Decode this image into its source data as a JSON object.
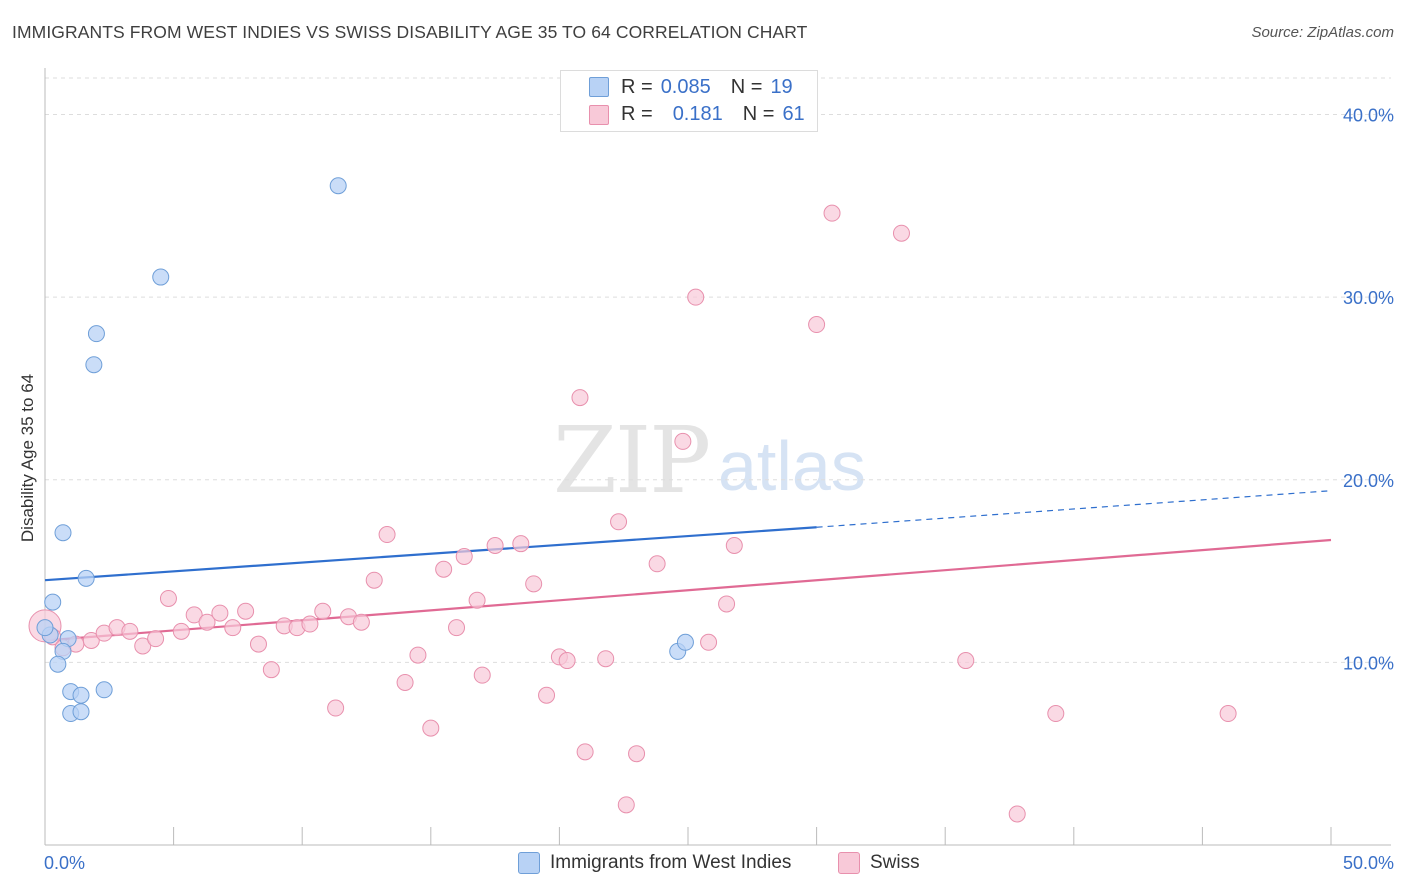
{
  "title": "IMMIGRANTS FROM WEST INDIES VS SWISS DISABILITY AGE 35 TO 64 CORRELATION CHART",
  "source": "Source: ZipAtlas.com",
  "watermark": {
    "zip": "ZIP",
    "atlas": "atlas"
  },
  "legend_top": [
    {
      "r_label": "R =",
      "r_value": "0.085",
      "n_label": "N =",
      "n_value": "19"
    },
    {
      "r_label": "R =",
      "r_value": "0.181",
      "n_label": "N =",
      "n_value": "61"
    }
  ],
  "legend_bottom": [
    "Immigrants from West Indies",
    "Swiss"
  ],
  "colors": {
    "series1_fill": "#b8d2f5",
    "series1_stroke": "#6f9fd8",
    "series1_line": "#2f6fce",
    "series2_fill": "#f8c9d8",
    "series2_stroke": "#e890ad",
    "series2_line": "#e06a94",
    "axis_text": "#3a70c8",
    "grid": "#dddddd"
  },
  "chart_data": {
    "type": "scatter",
    "title": "IMMIGRANTS FROM WEST INDIES VS SWISS DISABILITY AGE 35 TO 64 CORRELATION CHART",
    "xlabel": "",
    "ylabel": "Disability Age 35 to 64",
    "xlim": [
      0,
      50
    ],
    "ylim": [
      0,
      42
    ],
    "x_tick_labels": [
      "0.0%",
      "50.0%"
    ],
    "y_ticks": [
      10,
      20,
      30,
      40
    ],
    "y_tick_labels": [
      "10.0%",
      "20.0%",
      "30.0%",
      "40.0%"
    ],
    "grid": true,
    "legend_placement": "top-center",
    "series": [
      {
        "name": "Immigrants from West Indies",
        "r": 0.085,
        "n": 19,
        "points": [
          [
            11.4,
            36.1
          ],
          [
            4.5,
            31.1
          ],
          [
            2.0,
            28.0
          ],
          [
            1.9,
            26.3
          ],
          [
            0.7,
            17.1
          ],
          [
            1.6,
            14.6
          ],
          [
            0.3,
            13.3
          ],
          [
            0.2,
            11.5
          ],
          [
            0.9,
            11.3
          ],
          [
            0.7,
            10.6
          ],
          [
            0.5,
            9.9
          ],
          [
            1.0,
            8.4
          ],
          [
            1.4,
            8.2
          ],
          [
            2.3,
            8.5
          ],
          [
            1.0,
            7.2
          ],
          [
            1.4,
            7.3
          ],
          [
            24.6,
            10.6
          ],
          [
            24.9,
            11.1
          ],
          [
            0.0,
            11.9
          ]
        ],
        "trend": {
          "x": [
            0,
            30,
            50
          ],
          "y": [
            14.5,
            17.4,
            19.4
          ],
          "solid_until_x": 30
        }
      },
      {
        "name": "Swiss",
        "r": 0.181,
        "n": 61,
        "points": [
          [
            0.0,
            12.0
          ],
          [
            0.3,
            11.4
          ],
          [
            0.7,
            10.8
          ],
          [
            1.2,
            11.0
          ],
          [
            1.8,
            11.2
          ],
          [
            2.3,
            11.6
          ],
          [
            2.8,
            11.9
          ],
          [
            3.3,
            11.7
          ],
          [
            3.8,
            10.9
          ],
          [
            4.3,
            11.3
          ],
          [
            4.8,
            13.5
          ],
          [
            5.3,
            11.7
          ],
          [
            5.8,
            12.6
          ],
          [
            6.3,
            12.2
          ],
          [
            6.8,
            12.7
          ],
          [
            7.3,
            11.9
          ],
          [
            7.8,
            12.8
          ],
          [
            8.3,
            11.0
          ],
          [
            8.8,
            9.6
          ],
          [
            9.3,
            12.0
          ],
          [
            9.8,
            11.9
          ],
          [
            10.3,
            12.1
          ],
          [
            10.8,
            12.8
          ],
          [
            11.3,
            7.5
          ],
          [
            11.8,
            12.5
          ],
          [
            12.3,
            12.2
          ],
          [
            12.8,
            14.5
          ],
          [
            13.3,
            17.0
          ],
          [
            14.0,
            8.9
          ],
          [
            14.5,
            10.4
          ],
          [
            15.0,
            6.4
          ],
          [
            15.5,
            15.1
          ],
          [
            16.0,
            11.9
          ],
          [
            16.3,
            15.8
          ],
          [
            16.8,
            13.4
          ],
          [
            17.0,
            9.3
          ],
          [
            17.5,
            16.4
          ],
          [
            18.5,
            16.5
          ],
          [
            19.0,
            14.3
          ],
          [
            19.5,
            8.2
          ],
          [
            20.0,
            10.3
          ],
          [
            20.3,
            10.1
          ],
          [
            20.8,
            24.5
          ],
          [
            21.0,
            5.1
          ],
          [
            21.8,
            10.2
          ],
          [
            22.3,
            17.7
          ],
          [
            22.6,
            2.2
          ],
          [
            23.0,
            5.0
          ],
          [
            23.8,
            15.4
          ],
          [
            24.8,
            22.1
          ],
          [
            25.3,
            30.0
          ],
          [
            25.8,
            11.1
          ],
          [
            26.5,
            13.2
          ],
          [
            26.8,
            16.4
          ],
          [
            30.0,
            28.5
          ],
          [
            30.6,
            34.6
          ],
          [
            33.3,
            33.5
          ],
          [
            35.8,
            10.1
          ],
          [
            37.8,
            1.7
          ],
          [
            39.3,
            7.2
          ],
          [
            46.0,
            7.2
          ]
        ],
        "trend": {
          "x": [
            0,
            50
          ],
          "y": [
            11.2,
            16.7
          ]
        }
      }
    ]
  }
}
